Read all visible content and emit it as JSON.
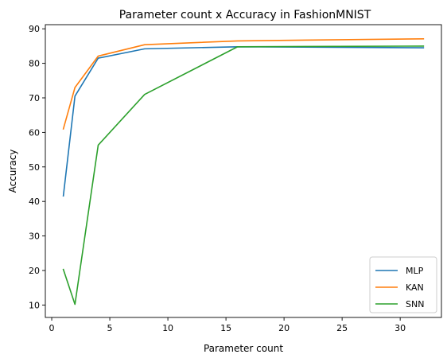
{
  "chart_data": {
    "type": "line",
    "title": "Parameter count x Accuracy in FashionMNIST",
    "xlabel": "Parameter count",
    "ylabel": "Accuracy",
    "xlim": [
      -0.55,
      33.55
    ],
    "ylim": [
      6.4,
      91.2
    ],
    "xticks": [
      0,
      5,
      10,
      15,
      20,
      25,
      30
    ],
    "yticks": [
      10,
      20,
      30,
      40,
      50,
      60,
      70,
      80,
      90
    ],
    "grid": false,
    "legend": "bottom-right",
    "x": [
      1,
      2,
      4,
      8,
      16,
      32
    ],
    "series": [
      {
        "name": "MLP",
        "color": "#1f77b4",
        "values": [
          41.6,
          70.5,
          81.5,
          84.2,
          84.8,
          84.5
        ]
      },
      {
        "name": "KAN",
        "color": "#ff7f0e",
        "values": [
          61.0,
          73.0,
          82.1,
          85.4,
          86.5,
          87.1
        ]
      },
      {
        "name": "SNN",
        "color": "#2ca02c",
        "values": [
          20.3,
          10.2,
          56.3,
          71.0,
          84.8,
          85.0
        ]
      }
    ]
  }
}
